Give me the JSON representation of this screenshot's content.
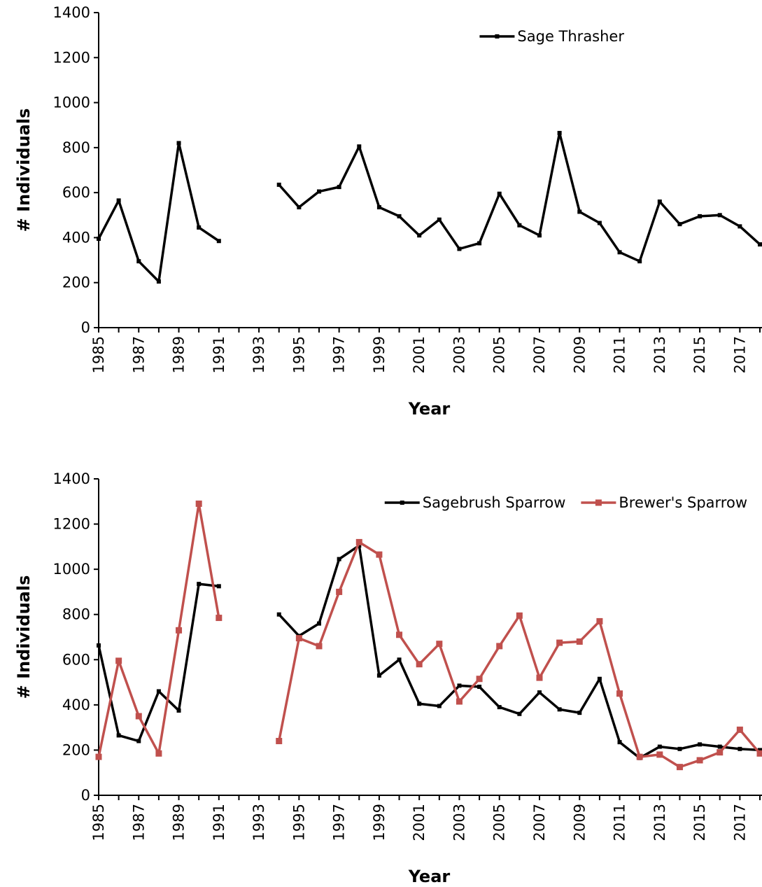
{
  "chart_data": [
    {
      "type": "line",
      "xlabel": "Year",
      "ylabel": "# Individuals",
      "legend": "upper right",
      "x": [
        1985,
        1986,
        1987,
        1988,
        1989,
        1990,
        1991,
        1992,
        1993,
        1994,
        1995,
        1996,
        1997,
        1998,
        1999,
        2000,
        2001,
        2002,
        2003,
        2004,
        2005,
        2006,
        2007,
        2008,
        2009,
        2010,
        2011,
        2012,
        2013,
        2014,
        2015,
        2016,
        2017,
        2018
      ],
      "series": [
        {
          "name": "Sage Thrasher",
          "color": "#000000",
          "values": [
            395,
            565,
            295,
            205,
            820,
            445,
            385,
            null,
            null,
            635,
            535,
            605,
            625,
            805,
            535,
            495,
            410,
            480,
            350,
            375,
            595,
            455,
            410,
            865,
            515,
            465,
            335,
            295,
            560,
            460,
            495,
            500,
            450,
            370
          ]
        }
      ],
      "xlim": [
        1985,
        2018
      ],
      "xticks": [
        1985,
        1987,
        1989,
        1991,
        1993,
        1995,
        1997,
        1999,
        2001,
        2003,
        2005,
        2007,
        2009,
        2011,
        2013,
        2015,
        2017
      ],
      "ylim": [
        0,
        1400
      ],
      "yticks": [
        0,
        200,
        400,
        600,
        800,
        1000,
        1200,
        1400
      ]
    },
    {
      "type": "line",
      "xlabel": "Year",
      "ylabel": "# Individuals",
      "legend": "upper right",
      "x": [
        1985,
        1986,
        1987,
        1988,
        1989,
        1990,
        1991,
        1992,
        1993,
        1994,
        1995,
        1996,
        1997,
        1998,
        1999,
        2000,
        2001,
        2002,
        2003,
        2004,
        2005,
        2006,
        2007,
        2008,
        2009,
        2010,
        2011,
        2012,
        2013,
        2014,
        2015,
        2016,
        2017,
        2018
      ],
      "series": [
        {
          "name": "Sagebrush Sparrow",
          "color": "#000000",
          "values": [
            663,
            265,
            240,
            460,
            375,
            935,
            925,
            null,
            null,
            800,
            705,
            760,
            1045,
            1105,
            530,
            600,
            405,
            395,
            485,
            480,
            390,
            360,
            455,
            380,
            365,
            515,
            235,
            165,
            215,
            205,
            225,
            215,
            205,
            200
          ]
        },
        {
          "name": "Brewer's Sparrow",
          "color": "#c0504d",
          "values": [
            170,
            595,
            350,
            185,
            730,
            1290,
            785,
            null,
            null,
            240,
            695,
            660,
            900,
            1120,
            1065,
            710,
            580,
            670,
            415,
            515,
            660,
            795,
            520,
            675,
            680,
            770,
            450,
            170,
            180,
            125,
            155,
            190,
            290,
            185
          ]
        }
      ],
      "xlim": [
        1985,
        2018
      ],
      "xticks": [
        1985,
        1987,
        1989,
        1991,
        1993,
        1995,
        1997,
        1999,
        2001,
        2003,
        2005,
        2007,
        2009,
        2011,
        2013,
        2015,
        2017
      ],
      "ylim": [
        0,
        1400
      ],
      "yticks": [
        0,
        200,
        400,
        600,
        800,
        1000,
        1200,
        1400
      ]
    }
  ]
}
